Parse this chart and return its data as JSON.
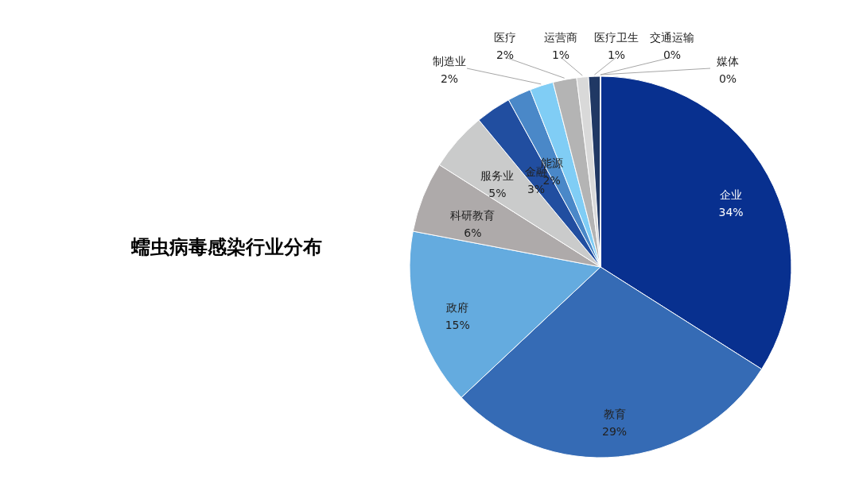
{
  "chart_data": {
    "type": "pie",
    "title": "蠕虫病毒感染行业分布",
    "categories": [
      "企业",
      "教育",
      "政府",
      "科研教育",
      "服务业",
      "金融",
      "能源",
      "制造业",
      "医疗",
      "运营商",
      "医疗卫生",
      "交通运输",
      "媒体"
    ],
    "values": [
      34,
      29,
      15,
      6,
      5,
      3,
      2,
      2,
      2,
      1,
      1,
      0,
      0
    ],
    "value_labels": [
      "34%",
      "29%",
      "15%",
      "6%",
      "5%",
      "3%",
      "2%",
      "2%",
      "2%",
      "1%",
      "1%",
      "0%",
      "0%"
    ],
    "colors": [
      "#08308f",
      "#356bb5",
      "#64abdf",
      "#aeaaaa",
      "#cacbcb",
      "#214ea0",
      "#4a88c8",
      "#80cdf5",
      "#b4b4b4",
      "#d9d9d9",
      "#203864",
      "#5b7fb8",
      "#9dc3e6"
    ]
  }
}
